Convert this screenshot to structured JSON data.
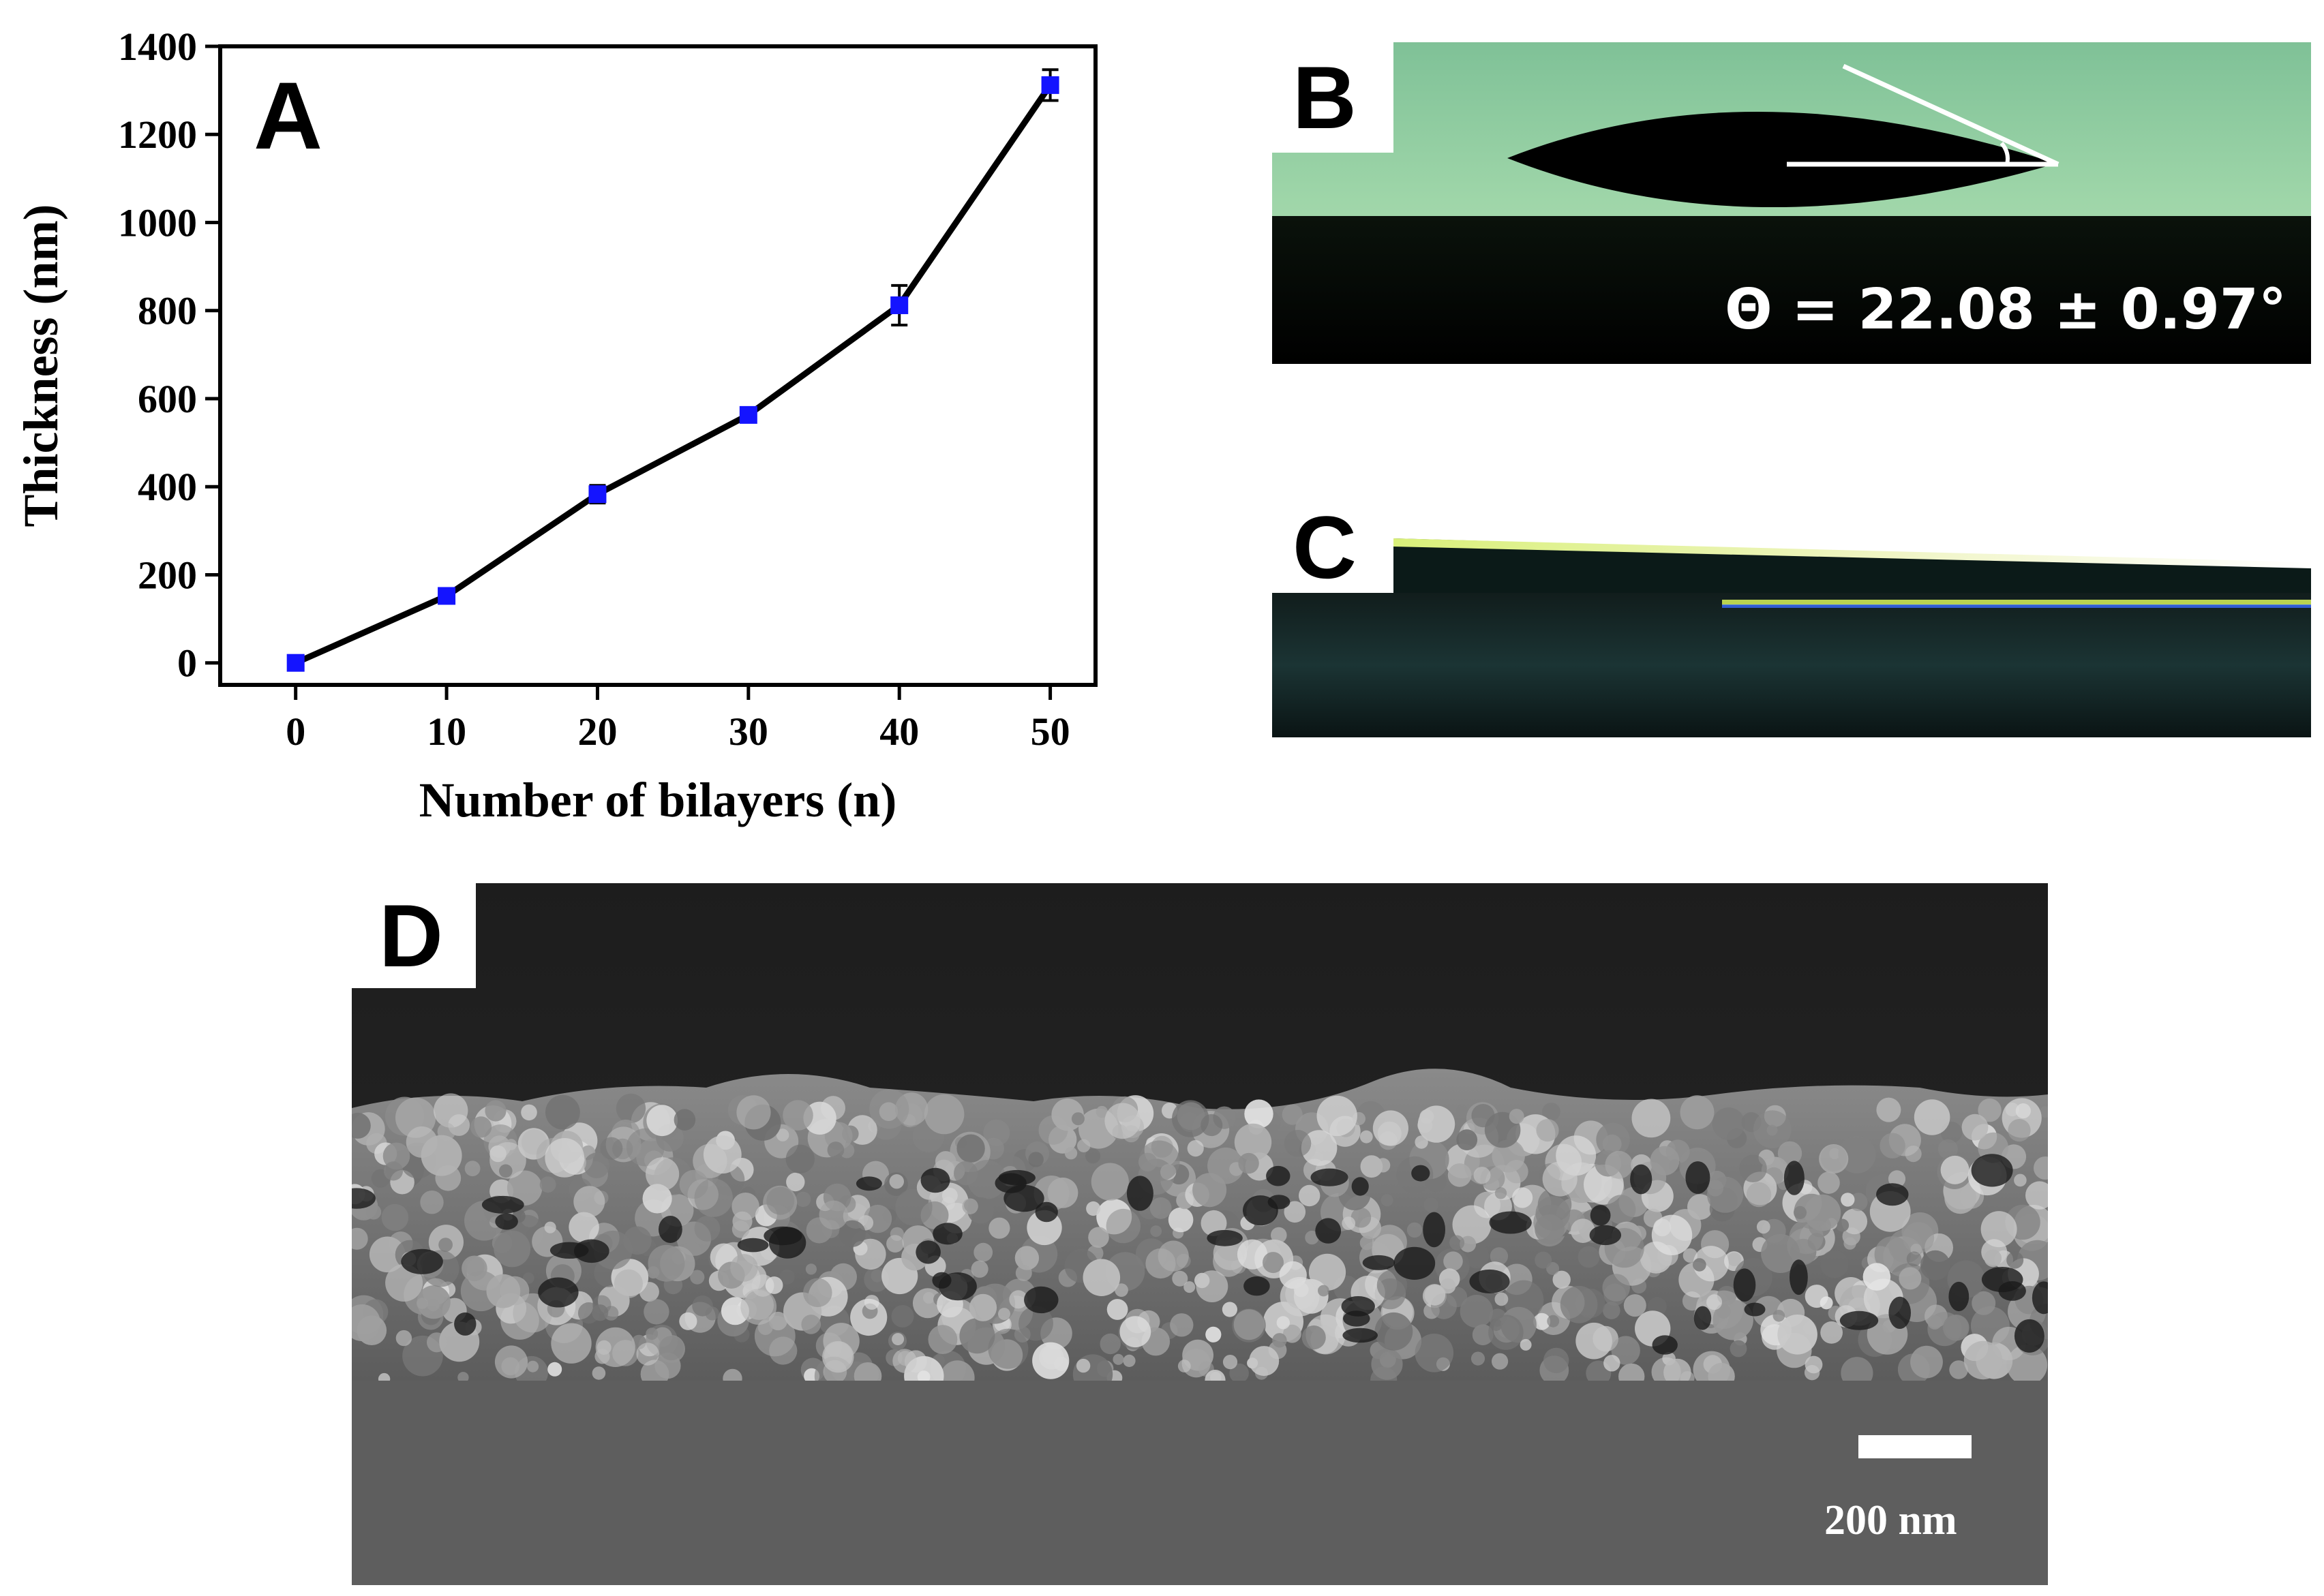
{
  "panels": {
    "a": {
      "letter": "A"
    },
    "b": {
      "letter": "B",
      "angle_text": "Θ = 22.08 ± 0.97°"
    },
    "c": {
      "letter": "C"
    },
    "d": {
      "letter": "D",
      "scale_label": "200 nm"
    }
  },
  "chart_data": {
    "type": "line",
    "title": "",
    "xlabel": "Number of bilayers (n)",
    "ylabel": "Thickness (nm)",
    "x": [
      0,
      10,
      20,
      30,
      40,
      50
    ],
    "xticks": [
      0,
      10,
      20,
      30,
      40,
      50
    ],
    "yticks": [
      0,
      200,
      400,
      600,
      800,
      1000,
      1200,
      1400
    ],
    "xlim": [
      -5,
      53
    ],
    "ylim": [
      -50,
      1400
    ],
    "grid": false,
    "legend": "none",
    "series": [
      {
        "values": [
          0,
          152,
          383,
          563,
          812,
          1312
        ],
        "errors": [
          8,
          10,
          20,
          12,
          45,
          35
        ],
        "line_color": "#000000",
        "marker_color": "#1414ff"
      }
    ]
  }
}
